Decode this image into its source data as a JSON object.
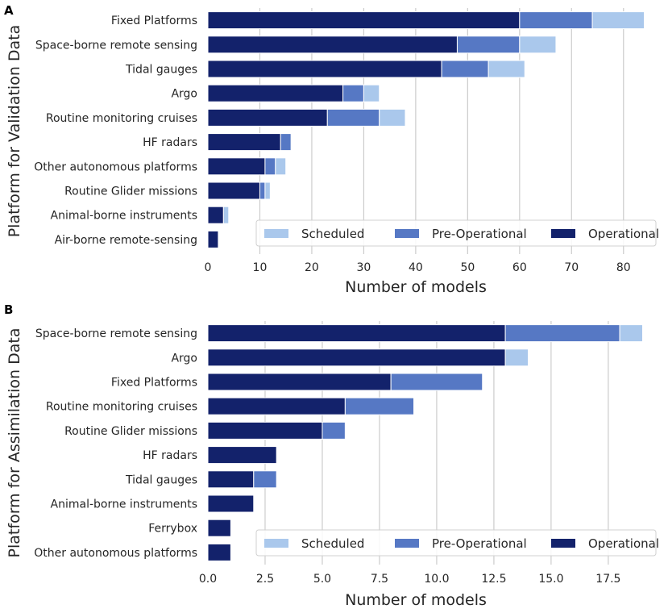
{
  "chart_data": [
    {
      "type": "bar",
      "orientation": "horizontal",
      "stacked": true,
      "panel_label": "A",
      "ylabel": "Platform for Validation Data",
      "xlabel": "Number of models",
      "categories": [
        "Fixed Platforms",
        "Space-borne remote sensing",
        "Tidal gauges",
        "Argo",
        "Routine monitoring cruises",
        "HF radars",
        "Other autonomous platforms",
        "Routine Glider missions",
        "Animal-borne instruments",
        "Air-borne remote-sensing"
      ],
      "series": [
        {
          "name": "Operational",
          "color": "#13226b",
          "values": [
            60,
            48,
            45,
            26,
            23,
            14,
            11,
            10,
            3,
            2
          ]
        },
        {
          "name": "Pre-Operational",
          "color": "#5678c4",
          "values": [
            14,
            12,
            9,
            4,
            10,
            2,
            2,
            1,
            0,
            0
          ]
        },
        {
          "name": "Scheduled",
          "color": "#aac8ec",
          "values": [
            10,
            7,
            7,
            3,
            5,
            0,
            2,
            1,
            1,
            0
          ]
        }
      ],
      "xlim": [
        0,
        85
      ],
      "xticks": [
        0,
        10,
        20,
        30,
        40,
        50,
        60,
        70,
        80
      ],
      "xtick_labels": [
        "0",
        "10",
        "20",
        "30",
        "40",
        "50",
        "60",
        "70",
        "80"
      ],
      "legend": [
        "Scheduled",
        "Pre-Operational",
        "Operational"
      ],
      "legend_position": "lower-right"
    },
    {
      "type": "bar",
      "orientation": "horizontal",
      "stacked": true,
      "panel_label": "B",
      "ylabel": "Platform for Assimilation Data",
      "xlabel": "Number of models",
      "categories": [
        "Space-borne remote sensing",
        "Argo",
        "Fixed Platforms",
        "Routine monitoring cruises",
        "Routine Glider missions",
        "HF radars",
        "Tidal gauges",
        "Animal-borne instruments",
        "Ferrybox",
        "Other autonomous platforms"
      ],
      "series": [
        {
          "name": "Operational",
          "color": "#13226b",
          "values": [
            13,
            13,
            8,
            6,
            5,
            3,
            2,
            2,
            1,
            1
          ]
        },
        {
          "name": "Pre-Operational",
          "color": "#5678c4",
          "values": [
            5,
            0,
            4,
            3,
            1,
            0,
            1,
            0,
            0,
            0
          ]
        },
        {
          "name": "Scheduled",
          "color": "#aac8ec",
          "values": [
            1,
            1,
            0,
            0,
            0,
            0,
            0,
            0,
            0,
            0
          ]
        }
      ],
      "xlim": [
        0,
        19.3
      ],
      "xticks": [
        0,
        2.5,
        5,
        7.5,
        10,
        12.5,
        15,
        17.5
      ],
      "xtick_labels": [
        "0.0",
        "2.5",
        "5.0",
        "7.5",
        "10.0",
        "12.5",
        "15.0",
        "17.5"
      ],
      "legend": [
        "Scheduled",
        "Pre-Operational",
        "Operational"
      ],
      "legend_position": "lower-right"
    }
  ]
}
